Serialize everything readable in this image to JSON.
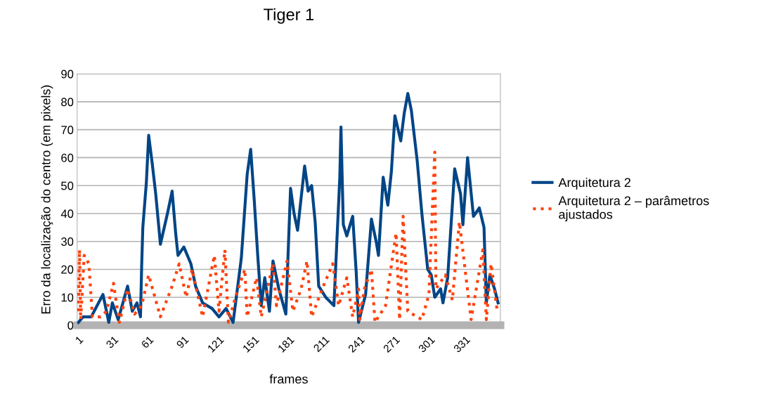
{
  "chart_data": {
    "type": "line",
    "title": "Tiger 1",
    "xlabel": "frames",
    "ylabel": "Erro da localização do centro (em pixels)",
    "xlim": [
      0,
      361
    ],
    "xticks": [
      1,
      31,
      61,
      91,
      121,
      151,
      181,
      211,
      241,
      271,
      301,
      331
    ],
    "ylim": [
      0,
      90
    ],
    "yticks": [
      0,
      10,
      20,
      30,
      40,
      50,
      60,
      70,
      80,
      90
    ],
    "grid": "y",
    "legend": "right",
    "series": [
      {
        "name": "Arquitetura 2",
        "color": "#004586",
        "line_style": "solid",
        "x": [
          1,
          5,
          12,
          22,
          27,
          30,
          35,
          43,
          47,
          51,
          54,
          55,
          56,
          59,
          61,
          64,
          67,
          71,
          77,
          81,
          84,
          86,
          91,
          97,
          101,
          107,
          115,
          121,
          127,
          133,
          140,
          145,
          148,
          151,
          154,
          157,
          160,
          164,
          167,
          172,
          178,
          182,
          185,
          188,
          194,
          197,
          200,
          203,
          206,
          212,
          219,
          224,
          225,
          227,
          230,
          235,
          238,
          240,
          246,
          251,
          255,
          257,
          261,
          265,
          268,
          271,
          276,
          279,
          282,
          285,
          290,
          294,
          299,
          302,
          305,
          310,
          312,
          316,
          322,
          327,
          329,
          333,
          338,
          343,
          347,
          349,
          352,
          356,
          359
        ],
        "values": [
          1,
          3,
          3,
          11,
          1,
          8,
          2,
          14,
          5,
          8,
          3,
          21,
          35,
          51,
          68,
          58,
          47,
          29,
          40,
          48,
          33,
          25,
          28,
          22,
          14,
          8,
          6,
          3,
          6,
          1,
          24,
          54,
          63,
          45,
          25,
          7,
          17,
          5,
          23,
          13,
          4,
          49,
          40,
          34,
          57,
          48,
          50,
          37,
          14,
          10,
          7,
          53,
          71,
          36,
          32,
          39,
          19,
          1,
          11,
          38,
          30,
          25,
          53,
          43,
          55,
          75,
          66,
          76,
          83,
          77,
          59,
          40,
          20,
          18,
          10,
          13,
          8,
          17,
          56,
          47,
          36,
          60,
          39,
          42,
          35,
          8,
          18,
          13,
          8
        ]
      },
      {
        "name": "Arquitetura 2 – parâmetros ajustados",
        "color": "#ff420e",
        "line_style": "dotted",
        "x": [
          1,
          2,
          3,
          6,
          10,
          13,
          20,
          25,
          31,
          36,
          43,
          49,
          55,
          61,
          71,
          81,
          87,
          93,
          98,
          107,
          117,
          121,
          126,
          129,
          135,
          143,
          145,
          153,
          157,
          167,
          170,
          179,
          184,
          191,
          196,
          200,
          209,
          218,
          223,
          230,
          235,
          240,
          241,
          245,
          251,
          254,
          263,
          272,
          275,
          278,
          282,
          294,
          300,
          305,
          306,
          314,
          320,
          326,
          336,
          346,
          349,
          353,
          358
        ],
        "values": [
          5,
          27,
          2,
          25,
          22,
          3,
          3,
          5,
          15,
          1,
          13,
          4,
          7,
          18,
          3,
          14,
          22,
          10,
          20,
          3,
          25,
          5,
          27,
          1,
          10,
          20,
          3,
          17,
          3,
          22,
          7,
          23,
          5,
          13,
          23,
          3,
          13,
          22,
          7,
          17,
          3,
          13,
          2,
          13,
          20,
          1,
          7,
          33,
          2,
          39,
          5,
          2,
          11,
          62,
          13,
          18,
          9,
          37,
          2,
          27,
          2,
          22,
          6
        ]
      }
    ]
  }
}
